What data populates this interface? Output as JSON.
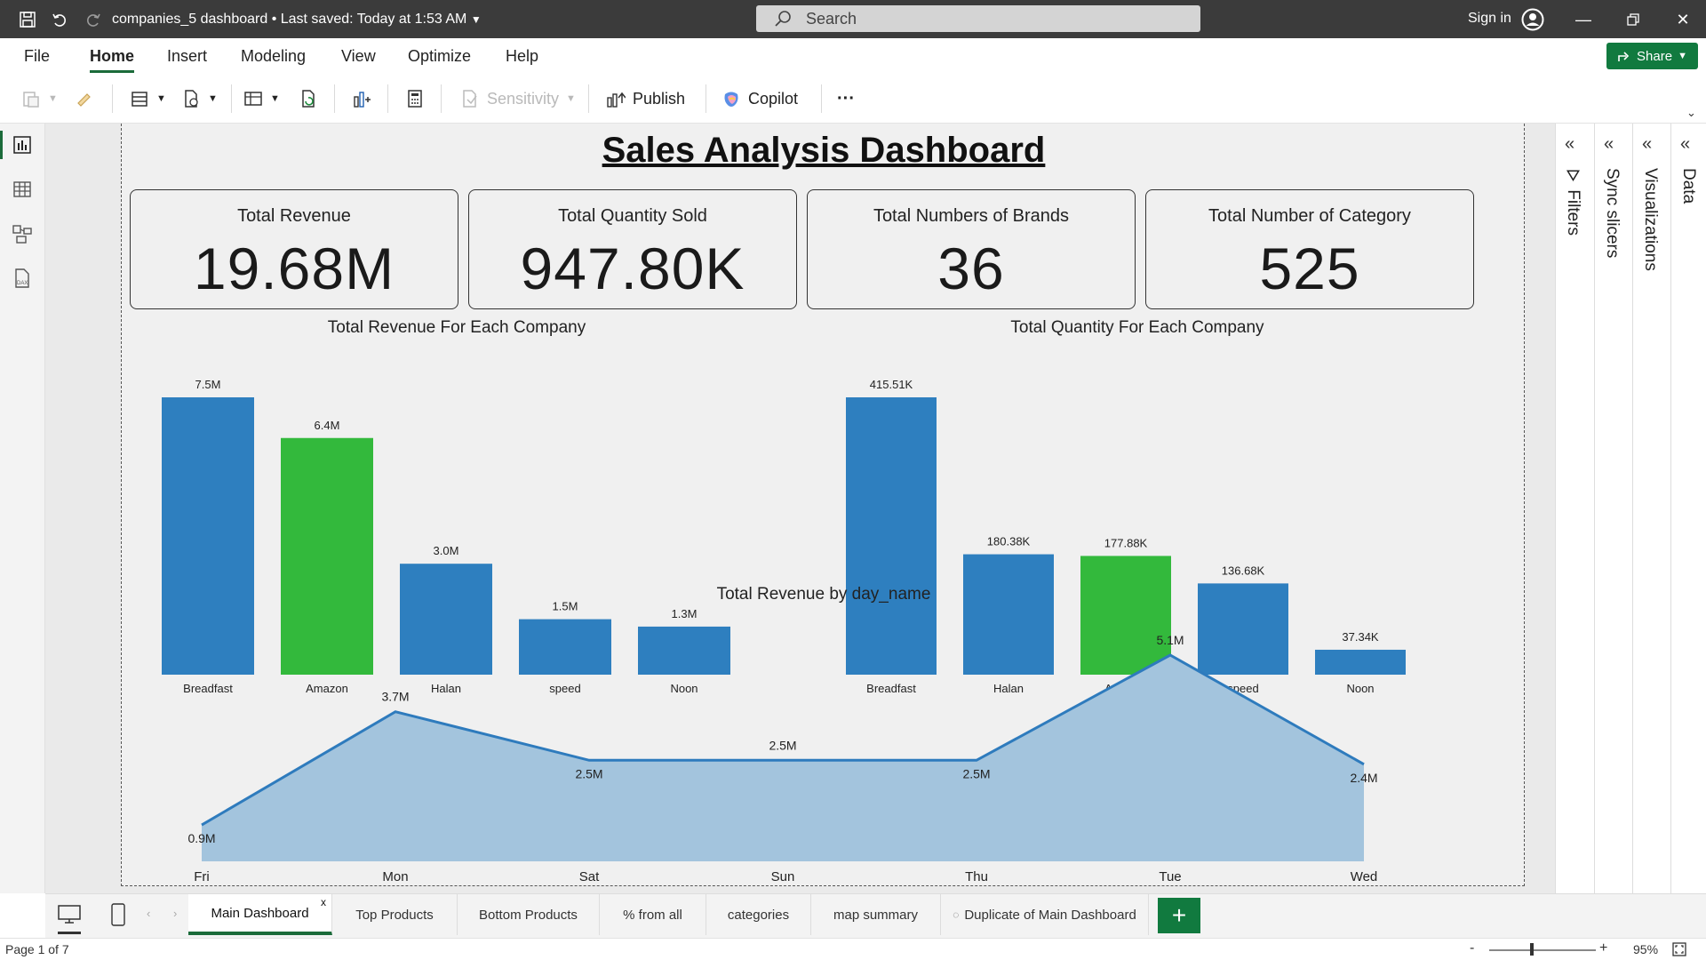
{
  "titlebar": {
    "doc_title": "companies_5 dashboard",
    "saved_status": "Last saved: Today at 1:53 AM",
    "search_placeholder": "Search",
    "sign_in": "Sign in"
  },
  "menu": {
    "items": [
      "File",
      "Home",
      "Insert",
      "Modeling",
      "View",
      "Optimize",
      "Help"
    ],
    "active": "Home",
    "share": "Share"
  },
  "ribbon": {
    "sensitivity": "Sensitivity",
    "publish": "Publish",
    "copilot": "Copilot",
    "more": "···"
  },
  "report": {
    "title": "Sales Analysis Dashboard",
    "cards": [
      {
        "label": "Total Revenue",
        "value": "19.68M"
      },
      {
        "label": "Total Quantity Sold",
        "value": "947.80K"
      },
      {
        "label": "Total Numbers of Brands",
        "value": "36"
      },
      {
        "label": "Total Number of Category",
        "value": "525"
      }
    ]
  },
  "chart_data": [
    {
      "type": "bar",
      "title": "Total Revenue For Each Company",
      "categories": [
        "Breadfast",
        "Amazon",
        "Halan",
        "speed",
        "Noon"
      ],
      "values": [
        7.5,
        6.4,
        3.0,
        1.5,
        1.3
      ],
      "data_labels": [
        "7.5M",
        "6.4M",
        "3.0M",
        "1.5M",
        "1.3M"
      ],
      "highlight": "Amazon",
      "ylim": [
        0,
        7.5
      ]
    },
    {
      "type": "bar",
      "title": "Total Quantity For Each Company",
      "categories": [
        "Breadfast",
        "Halan",
        "Amazon",
        "speed",
        "Noon"
      ],
      "values": [
        415.51,
        180.38,
        177.88,
        136.68,
        37.34
      ],
      "data_labels": [
        "415.51K",
        "180.38K",
        "177.88K",
        "136.68K",
        "37.34K"
      ],
      "highlight": "Amazon",
      "ylim": [
        0,
        415.51
      ]
    },
    {
      "type": "area",
      "title": "Total Revenue by day_name",
      "categories": [
        "Fri",
        "Mon",
        "Sat",
        "Sun",
        "Thu",
        "Tue",
        "Wed"
      ],
      "values": [
        0.9,
        3.7,
        2.5,
        2.5,
        2.5,
        5.1,
        2.4
      ],
      "data_labels": [
        "0.9M",
        "3.7M",
        "2.5M",
        "2.5M",
        "2.5M",
        "5.1M",
        "2.4M"
      ],
      "ylim": [
        0,
        5.1
      ]
    }
  ],
  "colors": {
    "bar": "#2e7fbf",
    "highlight": "#33b93c",
    "area_fill": "#a3c4dd",
    "area_line": "#2e7bbd",
    "accent": "#117a3f"
  },
  "panes": [
    "Filters",
    "Sync slicers",
    "Visualizations",
    "Data"
  ],
  "tabs": [
    "Main Dashboard",
    "Top Products",
    "Bottom Products",
    "% from all",
    "categories",
    "map summary",
    "Duplicate of Main Dashboard"
  ],
  "active_tab": "Main Dashboard",
  "status": {
    "page": "Page 1 of 7",
    "zoom": "95%"
  }
}
